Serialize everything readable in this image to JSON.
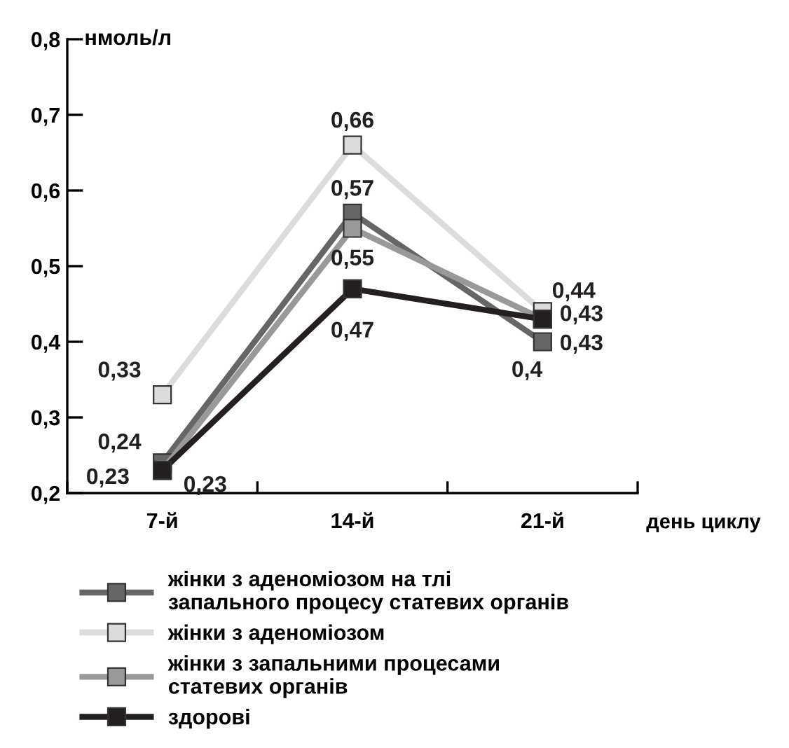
{
  "chart_data": {
    "type": "line",
    "ylabel": "нмоль/л",
    "xlabel": "день циклу",
    "categories": [
      "7-й",
      "14-й",
      "21-й"
    ],
    "ylim": [
      0.2,
      0.8
    ],
    "yticks": [
      {
        "value": 0.2,
        "label": "0,2"
      },
      {
        "value": 0.3,
        "label": "0,3"
      },
      {
        "value": 0.4,
        "label": "0,4"
      },
      {
        "value": 0.5,
        "label": "0,5"
      },
      {
        "value": 0.6,
        "label": "0,6"
      },
      {
        "value": 0.7,
        "label": "0,7"
      },
      {
        "value": 0.8,
        "label": "0,8"
      }
    ],
    "series": [
      {
        "name": "жінки з аденоміозом на тлі\nзапального процесу статевих органів",
        "color": "#666666",
        "values": [
          0.24,
          0.57,
          0.4
        ],
        "value_labels": [
          "0,24",
          "0,57",
          "0,4"
        ]
      },
      {
        "name": "жінки з аденоміозом",
        "color": "#dcdcdc",
        "values": [
          0.33,
          0.66,
          0.44
        ],
        "value_labels": [
          "0,33",
          "0,66",
          "0,44"
        ]
      },
      {
        "name": "жінки з запальними процесами\nстатевих органів",
        "color": "#999999",
        "values": [
          0.23,
          0.55,
          0.43
        ],
        "value_labels": [
          "0,23",
          "0,55",
          "0,43"
        ]
      },
      {
        "name": "здорові",
        "color": "#231f20",
        "values": [
          0.23,
          0.47,
          0.43
        ],
        "value_labels": [
          "0,23",
          "0,47",
          "0,43"
        ]
      }
    ],
    "marker": "square",
    "line_style": "solid",
    "grid": false,
    "legend": "bottom"
  }
}
